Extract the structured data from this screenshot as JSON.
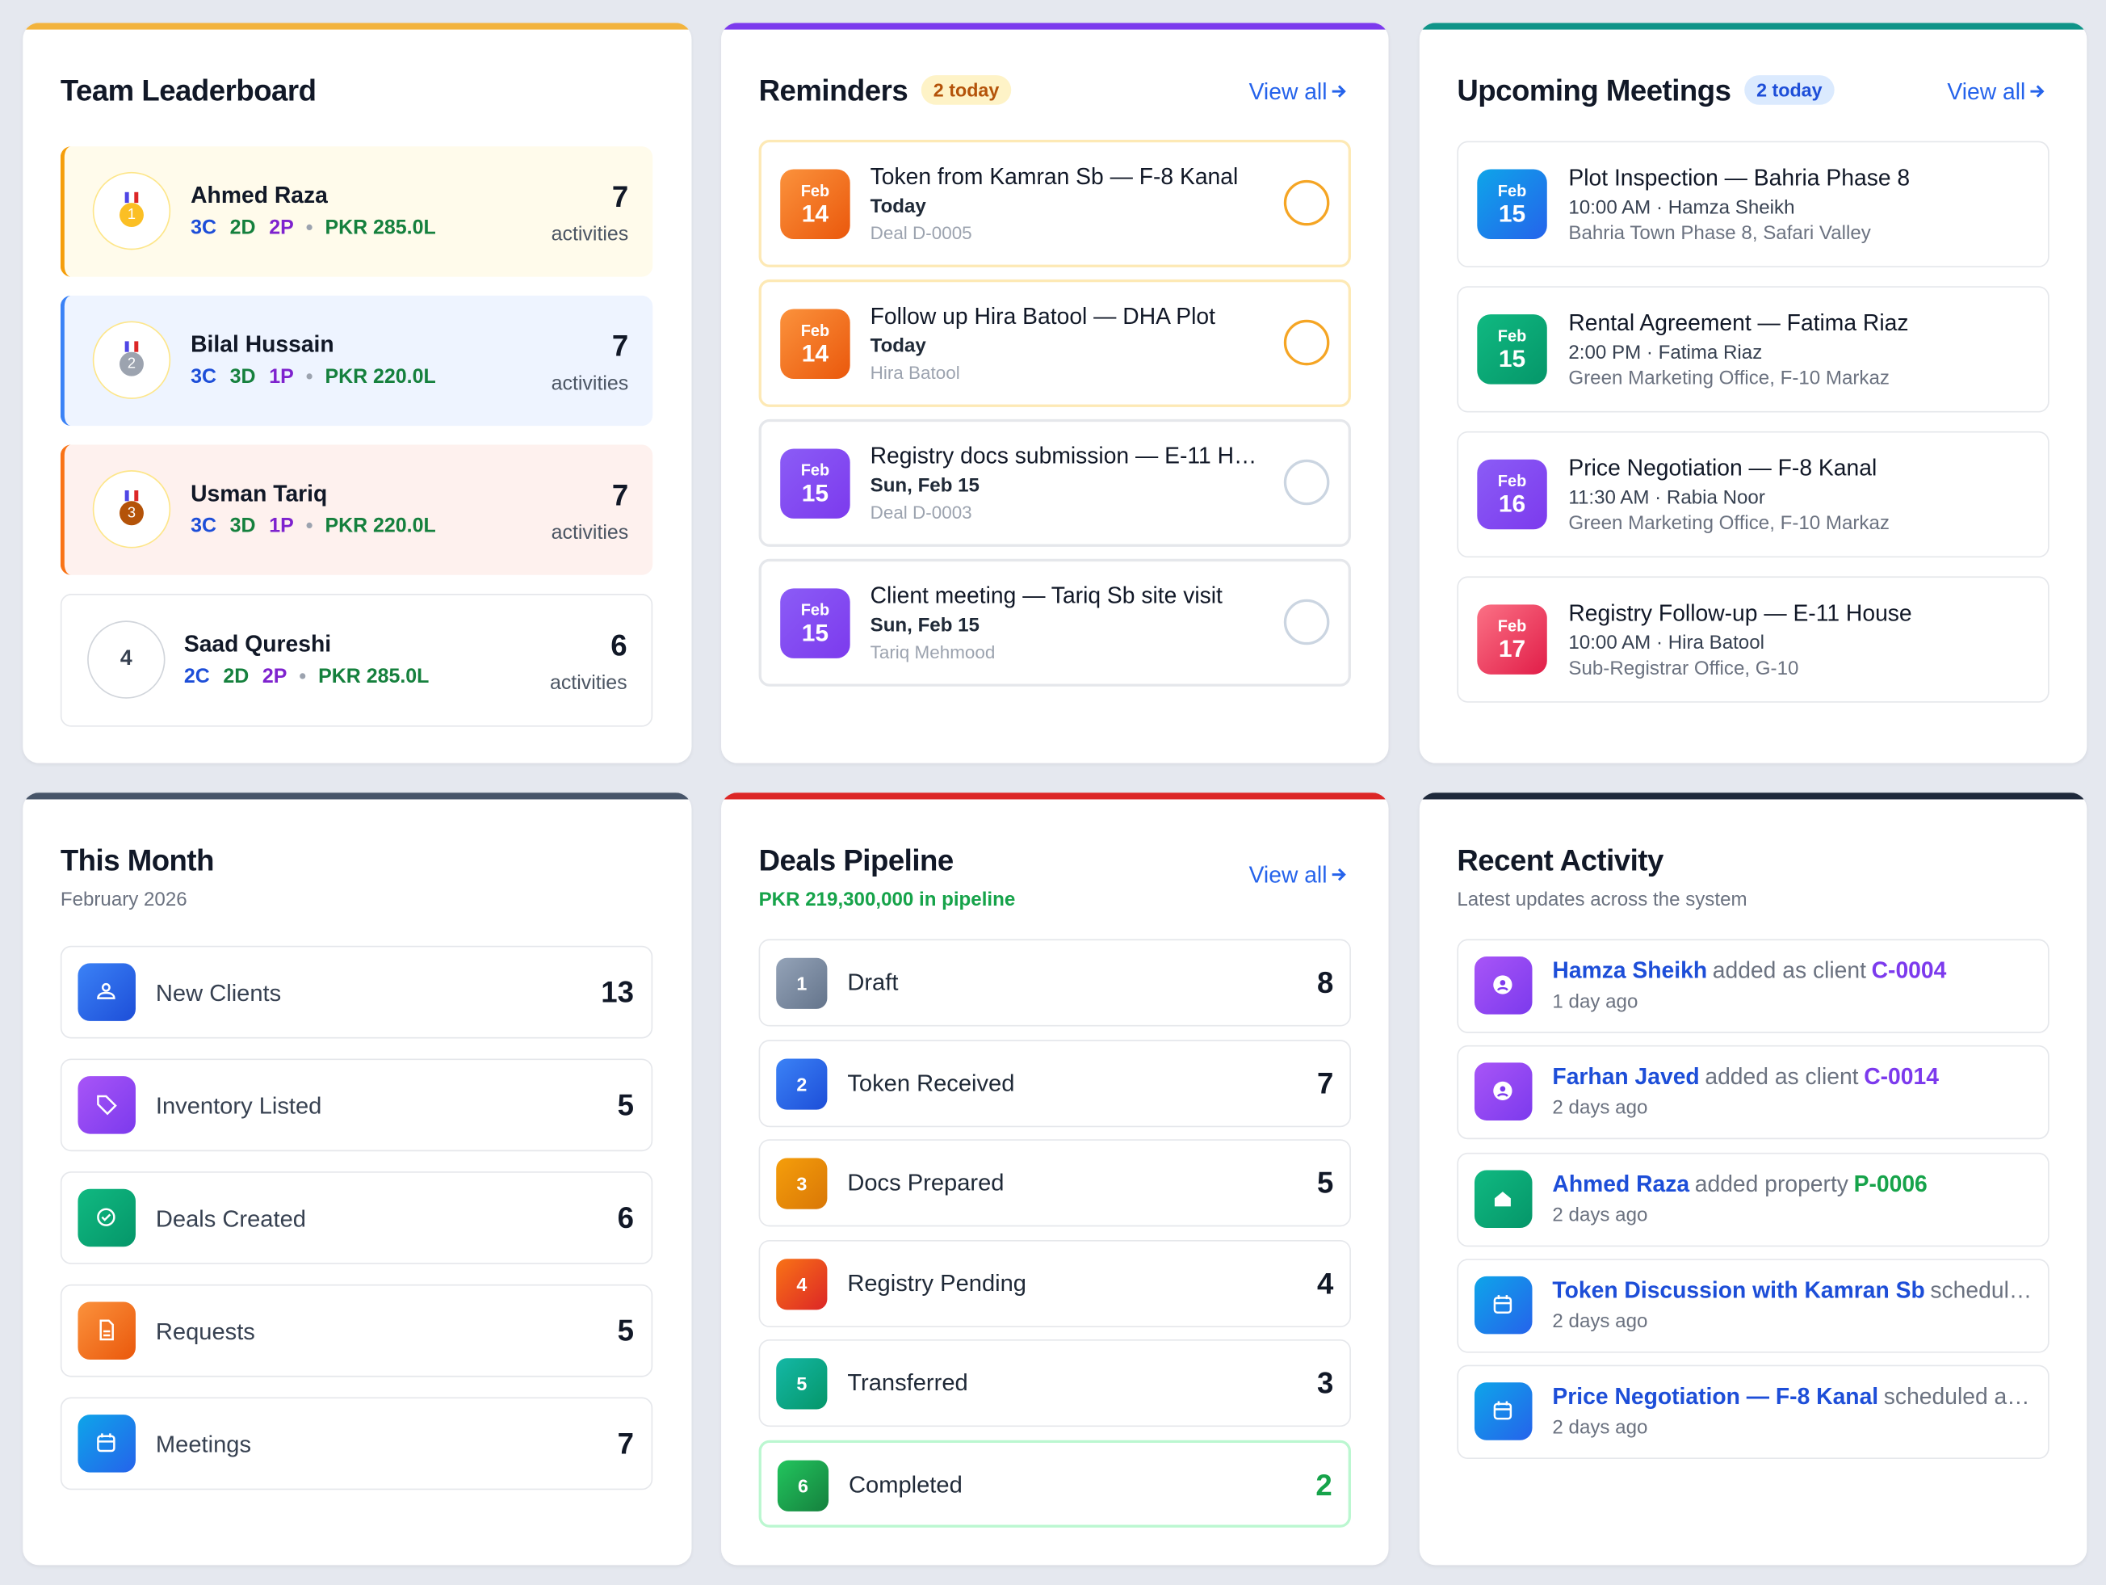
{
  "leaderboard": {
    "title": "Team Leaderboard",
    "members": [
      {
        "rank": 1,
        "name": "Ahmed Raza",
        "c": "3C",
        "d": "2D",
        "p": "2P",
        "amount": "PKR 285.0L",
        "count": 7,
        "unit": "activities"
      },
      {
        "rank": 2,
        "name": "Bilal Hussain",
        "c": "3C",
        "d": "3D",
        "p": "1P",
        "amount": "PKR 220.0L",
        "count": 7,
        "unit": "activities"
      },
      {
        "rank": 3,
        "name": "Usman Tariq",
        "c": "3C",
        "d": "3D",
        "p": "1P",
        "amount": "PKR 220.0L",
        "count": 7,
        "unit": "activities"
      },
      {
        "rank": 4,
        "name": "Saad Qureshi",
        "c": "2C",
        "d": "2D",
        "p": "2P",
        "amount": "PKR 285.0L",
        "count": 6,
        "unit": "activities"
      }
    ]
  },
  "reminders": {
    "title": "Reminders",
    "badge": "2 today",
    "view_all": "View all",
    "items": [
      {
        "month": "Feb",
        "day": 14,
        "title": "Token from Kamran Sb — F-8 Kanal",
        "when": "Today",
        "ref": "Deal D-0005"
      },
      {
        "month": "Feb",
        "day": 14,
        "title": "Follow up Hira Batool — DHA Plot",
        "when": "Today",
        "ref": "Hira Batool"
      },
      {
        "month": "Feb",
        "day": 15,
        "title": "Registry docs submission — E-11 H…",
        "when": "Sun, Feb 15",
        "ref": "Deal D-0003"
      },
      {
        "month": "Feb",
        "day": 15,
        "title": "Client meeting — Tariq Sb site visit",
        "when": "Sun, Feb 15",
        "ref": "Tariq Mehmood"
      }
    ]
  },
  "meetings": {
    "title": "Upcoming Meetings",
    "badge": "2 today",
    "view_all": "View all",
    "items": [
      {
        "month": "Feb",
        "day": 15,
        "title": "Plot Inspection — Bahria Phase 8",
        "time": "10:00 AM · Hamza Sheikh",
        "location": "Bahria Town Phase 8, Safari Valley"
      },
      {
        "month": "Feb",
        "day": 15,
        "title": "Rental Agreement — Fatima Riaz",
        "time": "2:00 PM · Fatima Riaz",
        "location": "Green Marketing Office, F-10 Markaz"
      },
      {
        "month": "Feb",
        "day": 16,
        "title": "Price Negotiation — F-8 Kanal",
        "time": "11:30 AM · Rabia Noor",
        "location": "Green Marketing Office, F-10 Markaz"
      },
      {
        "month": "Feb",
        "day": 17,
        "title": "Registry Follow-up — E-11 House",
        "time": "10:00 AM · Hira Batool",
        "location": "Sub-Registrar Office, G-10"
      }
    ]
  },
  "this_month": {
    "title": "This Month",
    "subtitle": "February 2026",
    "items": [
      {
        "label": "New Clients",
        "value": 13
      },
      {
        "label": "Inventory Listed",
        "value": 5
      },
      {
        "label": "Deals Created",
        "value": 6
      },
      {
        "label": "Requests",
        "value": 5
      },
      {
        "label": "Meetings",
        "value": 7
      }
    ]
  },
  "pipeline": {
    "title": "Deals Pipeline",
    "subtitle": "PKR 219,300,000 in pipeline",
    "view_all": "View all",
    "stages": [
      {
        "step": 1,
        "label": "Draft",
        "count": 8
      },
      {
        "step": 2,
        "label": "Token Received",
        "count": 7
      },
      {
        "step": 3,
        "label": "Docs Prepared",
        "count": 5
      },
      {
        "step": 4,
        "label": "Registry Pending",
        "count": 4
      },
      {
        "step": 5,
        "label": "Transferred",
        "count": 3
      },
      {
        "step": 6,
        "label": "Completed",
        "count": 2
      }
    ]
  },
  "activity": {
    "title": "Recent Activity",
    "subtitle": "Latest updates across the system",
    "items": [
      {
        "actor": "Hamza Sheikh",
        "action": "added as client",
        "ref": "C-0004",
        "time": "1 day ago"
      },
      {
        "actor": "Farhan Javed",
        "action": "added as client",
        "ref": "C-0014",
        "time": "2 days ago"
      },
      {
        "actor": "Ahmed Raza",
        "action": "added property",
        "ref": "P-0006",
        "time": "2 days ago"
      },
      {
        "actor": "Token Discussion with Kamran Sb",
        "action": "schedul…",
        "time": "2 days ago"
      },
      {
        "actor": "Price Negotiation — F-8 Kanal",
        "action": "scheduled a…",
        "time": "2 days ago"
      }
    ]
  }
}
